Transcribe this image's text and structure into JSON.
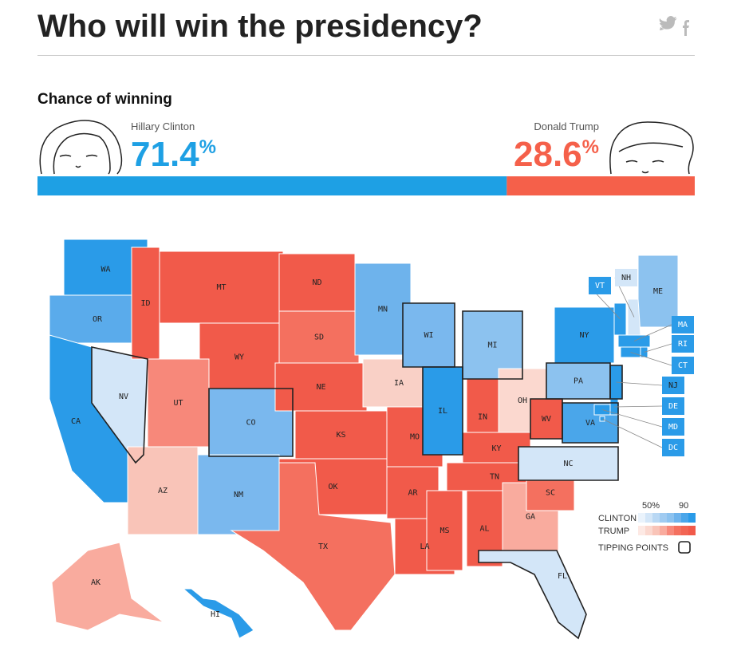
{
  "header": {
    "title": "Who will win the presidency?"
  },
  "forecast": {
    "subtitle": "Chance of winning",
    "candidates": [
      {
        "name": "Hillary Clinton",
        "chance": 71.4,
        "unit": "%",
        "color": "#1ea0e4"
      },
      {
        "name": "Donald Trump",
        "chance": 28.6,
        "unit": "%",
        "color": "#f5604a"
      }
    ]
  },
  "map": {
    "states": [
      {
        "abbr": "WA",
        "color": "#2a9be8",
        "tipping": false
      },
      {
        "abbr": "OR",
        "color": "#5aabeb",
        "tipping": false
      },
      {
        "abbr": "CA",
        "color": "#2a9be8",
        "tipping": false
      },
      {
        "abbr": "NV",
        "color": "#d3e6f8",
        "tipping": true
      },
      {
        "abbr": "ID",
        "color": "#f15a4a",
        "tipping": false
      },
      {
        "abbr": "MT",
        "color": "#f15a4a",
        "tipping": false
      },
      {
        "abbr": "WY",
        "color": "#f15a4a",
        "tipping": false
      },
      {
        "abbr": "UT",
        "color": "#f7887a",
        "tipping": false
      },
      {
        "abbr": "CO",
        "color": "#7ab8ee",
        "tipping": true
      },
      {
        "abbr": "AZ",
        "color": "#f9c4b8",
        "tipping": false
      },
      {
        "abbr": "NM",
        "color": "#7ab8ee",
        "tipping": false
      },
      {
        "abbr": "ND",
        "color": "#f15a4a",
        "tipping": false
      },
      {
        "abbr": "SD",
        "color": "#f4705f",
        "tipping": false
      },
      {
        "abbr": "NE",
        "color": "#f15a4a",
        "tipping": false
      },
      {
        "abbr": "KS",
        "color": "#f15a4a",
        "tipping": false
      },
      {
        "abbr": "OK",
        "color": "#f15a4a",
        "tipping": false
      },
      {
        "abbr": "TX",
        "color": "#f4705f",
        "tipping": false
      },
      {
        "abbr": "MN",
        "color": "#6eb3ec",
        "tipping": false
      },
      {
        "abbr": "IA",
        "color": "#f9d0c6",
        "tipping": false
      },
      {
        "abbr": "MO",
        "color": "#f15a4a",
        "tipping": false
      },
      {
        "abbr": "AR",
        "color": "#f15a4a",
        "tipping": false
      },
      {
        "abbr": "LA",
        "color": "#f15a4a",
        "tipping": false
      },
      {
        "abbr": "WI",
        "color": "#7ab8ee",
        "tipping": true
      },
      {
        "abbr": "IL",
        "color": "#2a9be8",
        "tipping": true
      },
      {
        "abbr": "MI",
        "color": "#8cc2ef",
        "tipping": true
      },
      {
        "abbr": "IN",
        "color": "#f15a4a",
        "tipping": false
      },
      {
        "abbr": "OH",
        "color": "#fbd8cf",
        "tipping": false
      },
      {
        "abbr": "KY",
        "color": "#f15a4a",
        "tipping": false
      },
      {
        "abbr": "TN",
        "color": "#f15a4a",
        "tipping": false
      },
      {
        "abbr": "MS",
        "color": "#f15a4a",
        "tipping": false
      },
      {
        "abbr": "AL",
        "color": "#f15a4a",
        "tipping": false
      },
      {
        "abbr": "GA",
        "color": "#f9ab9e",
        "tipping": false
      },
      {
        "abbr": "FL",
        "color": "#d3e6f8",
        "tipping": true
      },
      {
        "abbr": "SC",
        "color": "#f4705f",
        "tipping": false
      },
      {
        "abbr": "NC",
        "color": "#d3e6f8",
        "tipping": true
      },
      {
        "abbr": "VA",
        "color": "#4aa6ea",
        "tipping": true
      },
      {
        "abbr": "WV",
        "color": "#f15a4a",
        "tipping": true
      },
      {
        "abbr": "PA",
        "color": "#8cc2ef",
        "tipping": true
      },
      {
        "abbr": "NY",
        "color": "#2a9be8",
        "tipping": false
      },
      {
        "abbr": "NJ",
        "color": "#2a9be8",
        "tipping": true
      },
      {
        "abbr": "ME",
        "color": "#8cc2ef",
        "tipping": false
      },
      {
        "abbr": "VT",
        "color": "#2a9be8",
        "tipping": false
      },
      {
        "abbr": "NH",
        "color": "#d3e6f8",
        "tipping": false
      },
      {
        "abbr": "MA",
        "color": "#2a9be8",
        "tipping": false
      },
      {
        "abbr": "RI",
        "color": "#2a9be8",
        "tipping": false
      },
      {
        "abbr": "CT",
        "color": "#2a9be8",
        "tipping": false
      },
      {
        "abbr": "DE",
        "color": "#2a9be8",
        "tipping": false
      },
      {
        "abbr": "MD",
        "color": "#2a9be8",
        "tipping": false
      },
      {
        "abbr": "DC",
        "color": "#2a9be8",
        "tipping": false
      },
      {
        "abbr": "AK",
        "color": "#f9ab9e",
        "tipping": false
      },
      {
        "abbr": "HI",
        "color": "#2a9be8",
        "tipping": false
      }
    ]
  },
  "legend": {
    "low_label": "50%",
    "high_label": "90",
    "clinton": "CLINTON",
    "trump": "TRUMP",
    "tipping": "TIPPING POINTS",
    "clinton_colors": [
      "#eaf3fc",
      "#d3e6f8",
      "#b9d8f4",
      "#a0cbf1",
      "#8cc2ef",
      "#6eb3ec",
      "#4aa6ea",
      "#2a9be8"
    ],
    "trump_colors": [
      "#fde9e4",
      "#fbd8cf",
      "#f9c4b8",
      "#f9ab9e",
      "#f7887a",
      "#f4705f",
      "#f26553",
      "#f15a4a"
    ]
  }
}
